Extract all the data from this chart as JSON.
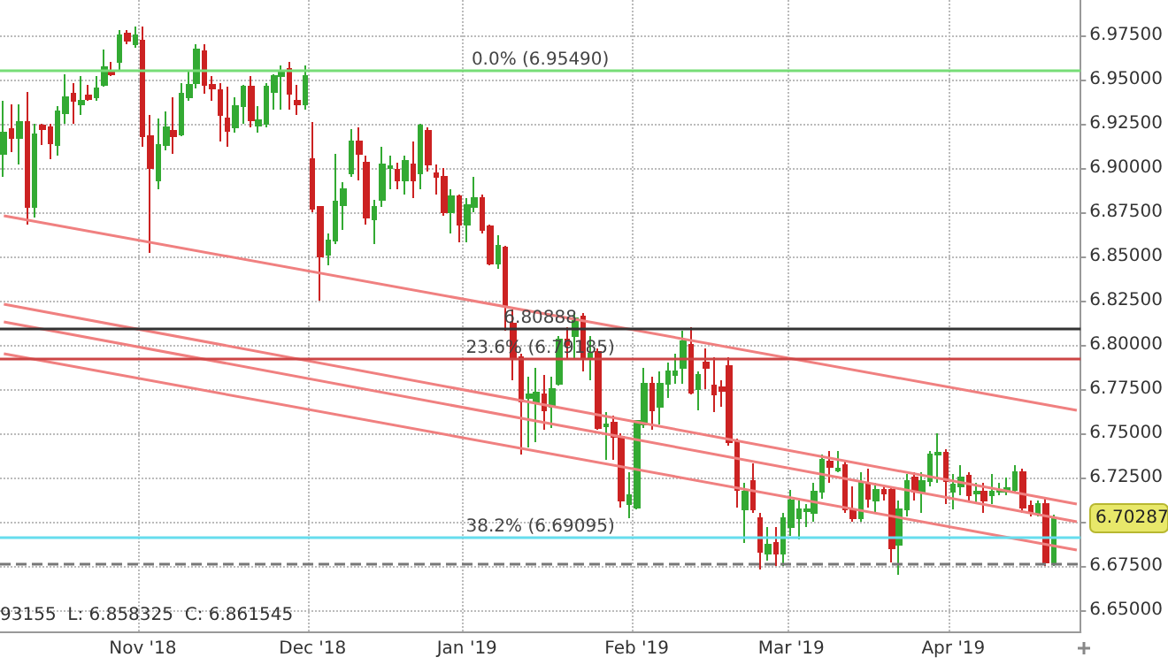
{
  "chart_data": {
    "type": "candlestick",
    "categories": [
      null,
      null,
      null,
      null,
      null,
      null,
      null,
      null,
      null,
      null,
      null,
      null,
      null,
      null,
      null,
      null,
      null,
      null,
      "Nov '18",
      null,
      null,
      null,
      null,
      null,
      null,
      null,
      null,
      null,
      null,
      null,
      null,
      null,
      null,
      null,
      null,
      null,
      null,
      null,
      null,
      null,
      "Dec '18",
      null,
      null,
      null,
      null,
      null,
      null,
      null,
      null,
      null,
      null,
      null,
      null,
      null,
      null,
      null,
      null,
      null,
      null,
      null,
      "Jan '19",
      null,
      null,
      null,
      null,
      null,
      null,
      null,
      null,
      null,
      null,
      null,
      null,
      null,
      null,
      null,
      null,
      null,
      null,
      null,
      null,
      null,
      "Feb '19",
      null,
      null,
      null,
      null,
      null,
      null,
      null,
      null,
      null,
      null,
      null,
      null,
      null,
      null,
      null,
      null,
      null,
      null,
      null,
      "Mar '19",
      null,
      null,
      null,
      null,
      null,
      null,
      null,
      null,
      null,
      null,
      null,
      null,
      null,
      null,
      null,
      null,
      null,
      null,
      null,
      null,
      "Apr '19",
      null,
      null,
      null,
      null,
      null,
      null,
      null,
      null,
      null,
      null,
      null,
      null,
      null,
      null,
      null,
      null
    ],
    "series": [
      {
        "ohlc": [
          [
            6.908,
            6.938,
            6.895,
            6.92
          ],
          [
            6.922,
            6.936,
            6.909,
            6.917
          ],
          [
            6.917,
            6.936,
            6.902,
            6.926
          ],
          [
            6.926,
            6.943,
            6.868,
            6.878
          ],
          [
            6.878,
            6.925,
            6.872,
            6.919
          ],
          [
            6.924,
            6.925,
            6.913,
            6.922
          ],
          [
            6.923,
            6.925,
            6.905,
            6.914
          ],
          [
            6.913,
            6.935,
            6.907,
            6.932
          ],
          [
            6.931,
            6.953,
            6.925,
            6.94
          ],
          [
            6.942,
            6.948,
            6.925,
            6.938
          ],
          [
            6.936,
            6.952,
            6.93,
            6.938
          ],
          [
            6.941,
            6.947,
            6.938,
            6.939
          ],
          [
            6.94,
            6.952,
            6.938,
            6.945
          ],
          [
            6.947,
            6.967,
            6.946,
            6.957
          ],
          [
            6.955,
            6.96,
            6.952,
            6.953
          ],
          [
            6.96,
            6.978,
            6.955,
            6.975
          ],
          [
            6.976,
            6.978,
            6.97,
            6.972
          ],
          [
            6.97,
            6.98,
            6.968,
            6.975
          ],
          [
            6.972,
            6.98,
            6.912,
            6.918
          ],
          [
            6.918,
            6.93,
            6.852,
            6.9
          ],
          [
            6.893,
            6.928,
            6.888,
            6.913
          ],
          [
            6.913,
            6.932,
            6.91,
            6.923
          ],
          [
            6.921,
            6.94,
            6.908,
            6.918
          ],
          [
            6.919,
            6.948,
            6.918,
            6.942
          ],
          [
            6.94,
            6.955,
            6.938,
            6.947
          ],
          [
            6.948,
            6.97,
            6.945,
            6.967
          ],
          [
            6.966,
            6.97,
            6.942,
            6.947
          ],
          [
            6.947,
            6.952,
            6.938,
            6.945
          ],
          [
            6.944,
            6.948,
            6.915,
            6.93
          ],
          [
            6.928,
            6.946,
            6.912,
            6.921
          ],
          [
            6.923,
            6.94,
            6.92,
            6.935
          ],
          [
            6.935,
            6.947,
            6.925,
            6.946
          ],
          [
            6.946,
            6.952,
            6.923,
            6.927
          ],
          [
            6.924,
            6.935,
            6.92,
            6.927
          ],
          [
            6.925,
            6.948,
            6.923,
            6.946
          ],
          [
            6.943,
            6.953,
            6.933,
            6.952
          ],
          [
            6.952,
            6.958,
            6.933,
            6.955
          ],
          [
            6.956,
            6.96,
            6.933,
            6.942
          ],
          [
            6.938,
            6.947,
            6.93,
            6.936
          ],
          [
            6.936,
            6.958,
            6.933,
            6.952
          ],
          [
            6.905,
            6.926,
            6.875,
            6.877
          ],
          [
            6.878,
            6.878,
            6.825,
            6.85
          ],
          [
            6.851,
            6.863,
            6.845,
            6.859
          ],
          [
            6.859,
            6.908,
            6.857,
            6.881
          ],
          [
            6.879,
            6.892,
            6.865,
            6.888
          ],
          [
            6.897,
            6.922,
            6.895,
            6.915
          ],
          [
            6.915,
            6.923,
            6.893,
            6.908
          ],
          [
            6.903,
            6.907,
            6.868,
            6.872
          ],
          [
            6.871,
            6.882,
            6.857,
            6.878
          ],
          [
            6.882,
            6.912,
            6.878,
            6.902
          ],
          [
            6.9,
            6.907,
            6.888,
            6.901
          ],
          [
            6.899,
            6.903,
            6.888,
            6.893
          ],
          [
            6.893,
            6.907,
            6.885,
            6.904
          ],
          [
            6.902,
            6.915,
            6.883,
            6.893
          ],
          [
            6.897,
            6.925,
            6.888,
            6.924
          ],
          [
            6.921,
            6.923,
            6.898,
            6.902
          ],
          [
            6.897,
            6.902,
            6.885,
            6.895
          ],
          [
            6.895,
            6.9,
            6.873,
            6.875
          ],
          [
            6.875,
            6.888,
            6.863,
            6.884
          ],
          [
            6.884,
            6.885,
            6.858,
            6.868
          ],
          [
            6.868,
            6.883,
            6.858,
            6.879
          ],
          [
            6.878,
            6.895,
            6.875,
            6.883
          ],
          [
            6.883,
            6.885,
            6.863,
            6.865
          ],
          [
            6.867,
            6.868,
            6.845,
            6.846
          ],
          [
            6.846,
            6.862,
            6.843,
            6.856
          ],
          [
            6.855,
            6.856,
            6.808,
            6.822
          ],
          [
            6.812,
            6.82,
            6.78,
            6.793
          ],
          [
            6.793,
            6.795,
            6.738,
            6.768
          ],
          [
            6.77,
            6.782,
            6.742,
            6.772
          ],
          [
            6.767,
            6.787,
            6.745,
            6.773
          ],
          [
            6.772,
            6.783,
            6.752,
            6.763
          ],
          [
            6.765,
            6.782,
            6.753,
            6.775
          ],
          [
            6.778,
            6.805,
            6.777,
            6.803
          ],
          [
            6.803,
            6.81,
            6.792,
            6.8
          ],
          [
            6.805,
            6.818,
            6.792,
            6.815
          ],
          [
            6.816,
            6.818,
            6.785,
            6.793
          ],
          [
            6.793,
            6.805,
            6.78,
            6.795
          ],
          [
            6.796,
            6.798,
            6.752,
            6.753
          ],
          [
            6.754,
            6.762,
            6.735,
            6.755
          ],
          [
            6.756,
            6.76,
            6.735,
            6.748
          ],
          [
            6.748,
            6.75,
            6.708,
            6.712
          ],
          [
            6.71,
            6.728,
            6.702,
            6.715
          ],
          [
            6.708,
            6.757,
            6.707,
            6.757
          ],
          [
            6.755,
            6.787,
            6.753,
            6.778
          ],
          [
            6.778,
            6.782,
            6.752,
            6.763
          ],
          [
            6.765,
            6.785,
            6.755,
            6.778
          ],
          [
            6.778,
            6.79,
            6.77,
            6.785
          ],
          [
            6.783,
            6.795,
            6.778,
            6.785
          ],
          [
            6.787,
            6.808,
            6.778,
            6.802
          ],
          [
            6.8,
            6.81,
            6.772,
            6.773
          ],
          [
            6.775,
            6.785,
            6.763,
            6.783
          ],
          [
            6.79,
            6.798,
            6.775,
            6.787
          ],
          [
            6.777,
            6.793,
            6.762,
            6.772
          ],
          [
            6.776,
            6.78,
            6.765,
            6.774
          ],
          [
            6.788,
            6.793,
            6.743,
            6.745
          ],
          [
            6.745,
            6.747,
            6.708,
            6.718
          ],
          [
            6.707,
            6.722,
            6.688,
            6.717
          ],
          [
            6.723,
            6.733,
            6.705,
            6.707
          ],
          [
            6.702,
            6.705,
            6.673,
            6.683
          ],
          [
            6.682,
            6.697,
            6.678,
            6.687
          ],
          [
            6.688,
            6.697,
            6.675,
            6.682
          ],
          [
            6.682,
            6.705,
            6.675,
            6.702
          ],
          [
            6.697,
            6.718,
            6.692,
            6.712
          ],
          [
            6.702,
            6.712,
            6.69,
            6.707
          ],
          [
            6.706,
            6.71,
            6.697,
            6.707
          ],
          [
            6.705,
            6.722,
            6.7,
            6.717
          ],
          [
            6.717,
            6.738,
            6.713,
            6.735
          ],
          [
            6.734,
            6.74,
            6.722,
            6.731
          ],
          [
            6.729,
            6.74,
            6.728,
            6.73
          ],
          [
            6.732,
            6.735,
            6.705,
            6.707
          ],
          [
            6.707,
            6.72,
            6.7,
            6.702
          ],
          [
            6.702,
            6.728,
            6.7,
            6.722
          ],
          [
            6.721,
            6.73,
            6.708,
            6.713
          ],
          [
            6.712,
            6.722,
            6.705,
            6.718
          ],
          [
            6.718,
            6.72,
            6.712,
            6.716
          ],
          [
            6.718,
            6.72,
            6.677,
            6.685
          ],
          [
            6.687,
            6.712,
            6.67,
            6.707
          ],
          [
            6.707,
            6.727,
            6.703,
            6.723
          ],
          [
            6.725,
            6.728,
            6.712,
            6.717
          ],
          [
            6.717,
            6.728,
            6.705,
            6.723
          ],
          [
            6.723,
            6.74,
            6.72,
            6.738
          ],
          [
            6.738,
            6.75,
            6.722,
            6.739
          ],
          [
            6.739,
            6.741,
            6.71,
            6.723
          ],
          [
            6.717,
            6.727,
            6.707,
            6.721
          ],
          [
            6.72,
            6.732,
            6.715,
            6.725
          ],
          [
            6.726,
            6.728,
            6.712,
            6.715
          ],
          [
            6.716,
            6.722,
            6.71,
            6.717
          ],
          [
            6.717,
            6.722,
            6.705,
            6.712
          ],
          [
            6.715,
            6.727,
            6.71,
            6.717
          ],
          [
            6.717,
            6.722,
            6.715,
            6.718
          ],
          [
            6.717,
            6.725,
            6.715,
            6.719
          ],
          [
            6.718,
            6.732,
            6.716,
            6.728
          ],
          [
            6.728,
            6.73,
            6.705,
            6.708
          ],
          [
            6.709,
            6.712,
            6.703,
            6.705
          ],
          [
            6.705,
            6.712,
            6.703,
            6.71
          ],
          [
            6.71,
            6.713,
            6.675,
            6.677
          ],
          [
            6.677,
            6.704,
            6.675,
            6.702
          ],
          null,
          null,
          null
        ],
        "colors": [
          "#33aa33",
          "#cc2222",
          "#33aa33",
          "#cc2222",
          "#33aa33",
          "#cc2222",
          "#cc2222",
          "#33aa33",
          "#33aa33",
          "#cc2222",
          "#33aa33",
          "#cc2222",
          "#33aa33",
          "#33aa33",
          "#cc2222",
          "#33aa33",
          "#cc2222",
          "#33aa33",
          "#cc2222",
          "#cc2222",
          "#33aa33",
          "#33aa33",
          "#cc2222",
          "#33aa33",
          "#33aa33",
          "#33aa33",
          "#cc2222",
          "#cc2222",
          "#cc2222",
          "#cc2222",
          "#33aa33",
          "#33aa33",
          "#cc2222",
          "#33aa33",
          "#33aa33",
          "#33aa33",
          "#33aa33",
          "#cc2222",
          "#cc2222",
          "#33aa33",
          "#cc2222",
          "#cc2222",
          "#33aa33",
          "#33aa33",
          "#33aa33",
          "#33aa33",
          "#cc2222",
          "#cc2222",
          "#33aa33",
          "#33aa33",
          "#33aa33",
          "#cc2222",
          "#33aa33",
          "#cc2222",
          "#33aa33",
          "#cc2222",
          "#cc2222",
          "#cc2222",
          "#33aa33",
          "#cc2222",
          "#33aa33",
          "#33aa33",
          "#cc2222",
          "#cc2222",
          "#33aa33",
          "#cc2222",
          "#cc2222",
          "#cc2222",
          "#33aa33",
          "#33aa33",
          "#cc2222",
          "#33aa33",
          "#33aa33",
          "#cc2222",
          "#33aa33",
          "#cc2222",
          "#33aa33",
          "#cc2222",
          "#33aa33",
          "#cc2222",
          "#cc2222",
          "#33aa33",
          "#33aa33",
          "#33aa33",
          "#cc2222",
          "#33aa33",
          "#33aa33",
          "#33aa33",
          "#33aa33",
          "#cc2222",
          "#33aa33",
          "#cc2222",
          "#cc2222",
          "#cc2222",
          "#cc2222",
          "#cc2222",
          "#33aa33",
          "#cc2222",
          "#cc2222",
          "#33aa33",
          "#cc2222",
          "#33aa33",
          "#33aa33",
          "#33aa33",
          "#33aa33",
          "#33aa33",
          "#33aa33",
          "#cc2222",
          "#33aa33",
          "#cc2222",
          "#cc2222",
          "#33aa33",
          "#cc2222",
          "#33aa33",
          "#cc2222",
          "#cc2222",
          "#33aa33",
          "#33aa33",
          "#cc2222",
          "#33aa33",
          "#33aa33",
          "#33aa33",
          "#cc2222",
          "#33aa33",
          "#33aa33",
          "#cc2222",
          "#33aa33",
          "#cc2222",
          "#33aa33",
          "#33aa33",
          "#33aa33",
          "#33aa33",
          "#cc2222",
          "#cc2222",
          "#33aa33",
          "#cc2222",
          "#33aa33",
          null,
          null,
          null
        ]
      },
      {
        "type": "line",
        "color": "#f08080",
        "values": [
          6.873,
          null,
          null,
          null,
          null,
          null,
          null,
          null,
          null,
          null,
          null,
          null,
          null,
          null,
          null,
          null,
          null,
          null,
          null,
          null,
          null,
          null,
          null,
          null,
          null,
          null,
          null,
          null,
          null,
          null,
          null,
          null,
          null,
          null,
          null,
          null,
          null,
          null,
          null,
          null,
          null,
          null,
          null,
          null,
          null,
          null,
          null,
          null,
          null,
          null,
          null,
          null,
          null,
          null,
          null,
          null,
          null,
          null,
          null,
          null,
          null,
          null,
          null,
          null,
          null,
          null,
          null,
          null,
          null,
          null,
          null,
          null,
          null,
          null,
          null,
          null,
          null,
          null,
          null,
          null,
          null,
          null,
          null,
          null,
          null,
          null,
          null,
          null,
          null,
          null,
          null,
          null,
          null,
          null,
          null,
          null,
          null,
          null,
          null,
          null,
          null,
          null,
          null,
          null,
          null,
          null,
          null,
          null,
          null,
          null,
          null,
          null,
          null,
          null,
          null,
          null,
          null,
          null,
          null,
          null,
          null,
          null,
          null,
          null,
          null,
          null,
          null,
          null,
          null,
          null,
          null,
          null,
          null,
          null,
          null,
          null,
          null,
          null,
          null,
          6.763
        ]
      },
      {
        "type": "line",
        "color": "#f08080",
        "values": [
          6.823,
          null,
          null,
          null,
          null,
          null,
          null,
          null,
          null,
          null,
          null,
          null,
          null,
          null,
          null,
          null,
          null,
          null,
          null,
          null,
          null,
          null,
          null,
          null,
          null,
          null,
          null,
          null,
          null,
          null,
          null,
          null,
          null,
          null,
          null,
          null,
          null,
          null,
          null,
          null,
          null,
          null,
          null,
          null,
          null,
          null,
          null,
          null,
          null,
          null,
          null,
          null,
          null,
          null,
          null,
          null,
          null,
          null,
          null,
          null,
          null,
          null,
          null,
          null,
          null,
          null,
          null,
          null,
          null,
          null,
          null,
          null,
          null,
          null,
          null,
          null,
          null,
          null,
          null,
          null,
          null,
          null,
          null,
          null,
          null,
          null,
          null,
          null,
          null,
          null,
          null,
          null,
          null,
          null,
          null,
          null,
          null,
          null,
          null,
          null,
          null,
          null,
          null,
          null,
          null,
          null,
          null,
          null,
          null,
          null,
          null,
          null,
          null,
          null,
          null,
          null,
          null,
          null,
          null,
          null,
          null,
          null,
          null,
          null,
          null,
          null,
          null,
          null,
          null,
          null,
          null,
          null,
          null,
          null,
          null,
          null,
          null,
          null,
          null,
          6.71
        ]
      },
      {
        "type": "line",
        "color": "#f08080",
        "values": [
          6.813,
          null,
          null,
          null,
          null,
          null,
          null,
          null,
          null,
          null,
          null,
          null,
          null,
          null,
          null,
          null,
          null,
          null,
          null,
          null,
          null,
          null,
          null,
          null,
          null,
          null,
          null,
          null,
          null,
          null,
          null,
          null,
          null,
          null,
          null,
          null,
          null,
          null,
          null,
          null,
          null,
          null,
          null,
          null,
          null,
          null,
          null,
          null,
          null,
          null,
          null,
          null,
          null,
          null,
          null,
          null,
          null,
          null,
          null,
          null,
          null,
          null,
          null,
          null,
          null,
          null,
          null,
          null,
          null,
          null,
          null,
          null,
          null,
          null,
          null,
          null,
          null,
          null,
          null,
          null,
          null,
          null,
          null,
          null,
          null,
          null,
          null,
          null,
          null,
          null,
          null,
          null,
          null,
          null,
          null,
          null,
          null,
          null,
          null,
          null,
          null,
          null,
          null,
          null,
          null,
          null,
          null,
          null,
          null,
          null,
          null,
          null,
          null,
          null,
          null,
          null,
          null,
          null,
          null,
          null,
          null,
          null,
          null,
          null,
          null,
          null,
          null,
          null,
          null,
          null,
          null,
          null,
          null,
          null,
          null,
          null,
          null,
          null,
          null,
          6.7
        ]
      },
      {
        "type": "line",
        "color": "#f08080",
        "values": [
          6.795,
          null,
          null,
          null,
          null,
          null,
          null,
          null,
          null,
          null,
          null,
          null,
          null,
          null,
          null,
          null,
          null,
          null,
          null,
          null,
          null,
          null,
          null,
          null,
          null,
          null,
          null,
          null,
          null,
          null,
          null,
          null,
          null,
          null,
          null,
          null,
          null,
          null,
          null,
          null,
          null,
          null,
          null,
          null,
          null,
          null,
          null,
          null,
          null,
          null,
          null,
          null,
          null,
          null,
          null,
          null,
          null,
          null,
          null,
          null,
          null,
          null,
          null,
          null,
          null,
          null,
          null,
          null,
          null,
          null,
          null,
          null,
          null,
          null,
          null,
          null,
          null,
          null,
          null,
          null,
          null,
          null,
          null,
          null,
          null,
          null,
          null,
          null,
          null,
          null,
          null,
          null,
          null,
          null,
          null,
          null,
          null,
          null,
          null,
          null,
          null,
          null,
          null,
          null,
          null,
          null,
          null,
          null,
          null,
          null,
          null,
          null,
          null,
          null,
          null,
          null,
          null,
          null,
          null,
          null,
          null,
          null,
          null,
          null,
          null,
          null,
          null,
          null,
          null,
          null,
          null,
          null,
          null,
          null,
          null,
          null,
          null,
          null,
          null,
          6.684
        ]
      }
    ],
    "ylim": [
      6.638,
      6.995
    ],
    "yticks": [
      {
        "value": 6.65,
        "label": "6.65000"
      },
      {
        "value": 6.675,
        "label": "6.67500"
      },
      {
        "value": 6.7,
        "label": null
      },
      {
        "value": 6.725,
        "label": "6.72500"
      },
      {
        "value": 6.75,
        "label": "6.75000"
      },
      {
        "value": 6.775,
        "label": "6.77500"
      },
      {
        "value": 6.8,
        "label": "6.80000"
      },
      {
        "value": 6.825,
        "label": "6.82500"
      },
      {
        "value": 6.85,
        "label": "6.85000"
      },
      {
        "value": 6.875,
        "label": "6.87500"
      },
      {
        "value": 6.9,
        "label": "6.90000"
      },
      {
        "value": 6.925,
        "label": "6.92500"
      },
      {
        "value": 6.95,
        "label": "6.95000"
      },
      {
        "value": 6.975,
        "label": "6.97500"
      }
    ],
    "ref_lines": [
      {
        "axis": "y",
        "value": 6.9549,
        "label": "0.0% (6.95490)",
        "color": "#77dd77"
      },
      {
        "axis": "y",
        "value": 6.80888,
        "label": "6.80888",
        "color": "#333333"
      },
      {
        "axis": "y",
        "value": 6.79185,
        "label": "23.6% (6.79185)",
        "color": "#cc4444"
      },
      {
        "axis": "y",
        "value": 6.69095,
        "label": "38.2% (6.69095)",
        "color": "#66ddee"
      },
      {
        "axis": "y",
        "value": 6.676,
        "label": null,
        "color": "#777777",
        "line_style": "dashed"
      }
    ],
    "annotations": [
      "93155  L: 6.858325  C: 6.861545",
      "6.70287"
    ],
    "grid": true
  }
}
